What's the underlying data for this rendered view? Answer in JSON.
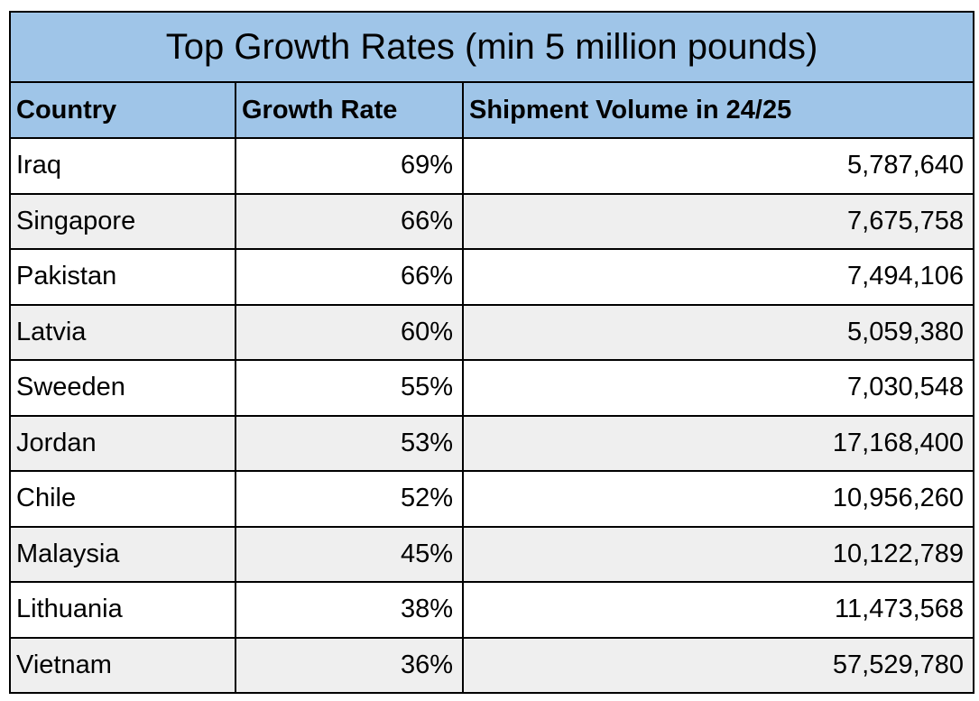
{
  "colors": {
    "header_bg": "#9fc5e8",
    "row_alt_bg": "#efefef",
    "row_bg": "#ffffff",
    "border": "#000000"
  },
  "chart_data": {
    "type": "table",
    "title": "Top Growth Rates (min 5 million pounds)",
    "columns": [
      "Country",
      "Growth Rate",
      "Shipment Volume in 24/25"
    ],
    "rows": [
      [
        "Iraq",
        "69%",
        "5,787,640"
      ],
      [
        "Singapore",
        "66%",
        "7,675,758"
      ],
      [
        "Pakistan",
        "66%",
        "7,494,106"
      ],
      [
        "Latvia",
        "60%",
        "5,059,380"
      ],
      [
        "Sweeden",
        "55%",
        "7,030,548"
      ],
      [
        "Jordan",
        "53%",
        "17,168,400"
      ],
      [
        "Chile",
        "52%",
        "10,956,260"
      ],
      [
        "Malaysia",
        "45%",
        "10,122,789"
      ],
      [
        "Lithuania",
        "38%",
        "11,473,568"
      ],
      [
        "Vietnam",
        "36%",
        "57,529,780"
      ]
    ]
  }
}
